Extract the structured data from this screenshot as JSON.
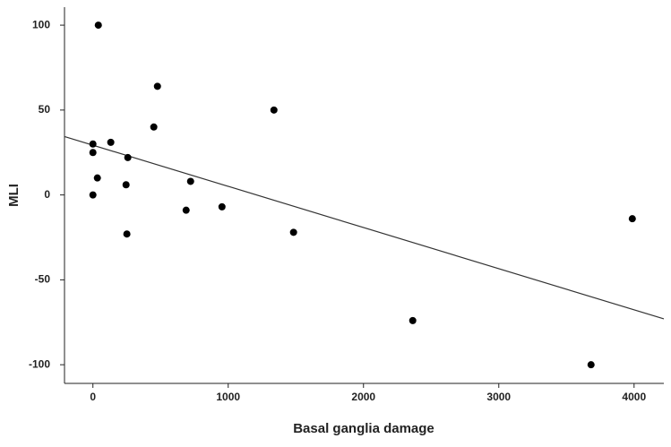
{
  "chart_data": {
    "type": "scatter",
    "x_label": "Basal ganglia damage",
    "y_label": "MLI",
    "x": [
      40,
      477,
      1338,
      450,
      0,
      132,
      0,
      258,
      33,
      245,
      722,
      0,
      689,
      954,
      251,
      1483,
      2364,
      3987,
      3682
    ],
    "values": [
      100,
      64,
      50,
      40,
      30,
      31,
      25,
      22,
      10,
      6,
      8,
      0,
      -9,
      -7,
      -23,
      -22,
      -74,
      -14,
      -100
    ],
    "color": "#000000",
    "trend_line": {
      "x": [
        -210,
        4220
      ],
      "y": [
        34.4,
        -73
      ],
      "color": "#333333"
    },
    "xlim": [
      -210,
      4220
    ],
    "ylim": [
      -111,
      110.6
    ],
    "xticks": [
      0,
      1000,
      2000,
      3000,
      4000
    ],
    "yticks": [
      -100,
      -50,
      0,
      50,
      100
    ]
  }
}
